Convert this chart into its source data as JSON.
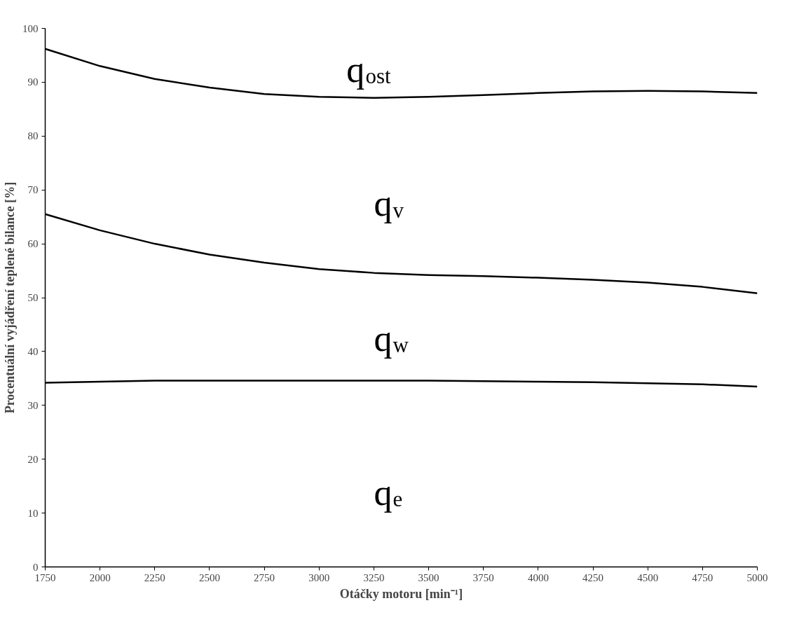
{
  "chart_data": {
    "type": "line",
    "xlabel": "Otáčky motoru [min⁻¹]",
    "ylabel": "Procentuální vyjádření teplené bilance [%]",
    "x": [
      1750,
      2000,
      2250,
      2500,
      2750,
      3000,
      3250,
      3500,
      3750,
      4000,
      4250,
      4500,
      4750,
      5000
    ],
    "series": [
      {
        "color": "#000000",
        "values": [
          96.2,
          93,
          90.6,
          89,
          87.8,
          87.3,
          87.1,
          87.3,
          87.6,
          88,
          88.3,
          88.4,
          88.3,
          88.0
        ]
      },
      {
        "color": "#000000",
        "values": [
          65.5,
          62.5,
          60,
          58,
          56.5,
          55.3,
          54.6,
          54.2,
          54,
          53.7,
          53.3,
          52.8,
          52,
          50.8
        ]
      },
      {
        "color": "#000000",
        "values": [
          34.2,
          34.4,
          34.6,
          34.6,
          34.6,
          34.6,
          34.6,
          34.6,
          34.5,
          34.4,
          34.3,
          34.1,
          33.9,
          33.5
        ]
      }
    ],
    "annotations": [
      "q$_{ost}$",
      "q$_{v}$",
      "q$_{w}$",
      "q$_{e}$"
    ],
    "xlim": [
      1750,
      5000
    ],
    "ylim": [
      0,
      100
    ],
    "xticks": [
      1750,
      2000,
      2250,
      2500,
      2750,
      3000,
      3250,
      3500,
      3750,
      4000,
      4250,
      4500,
      4750,
      5000
    ],
    "yticks": [
      0,
      10,
      20,
      30,
      40,
      50,
      60,
      70,
      80,
      90,
      100
    ],
    "grid": false,
    "marker": "none",
    "line_style": "solid"
  }
}
